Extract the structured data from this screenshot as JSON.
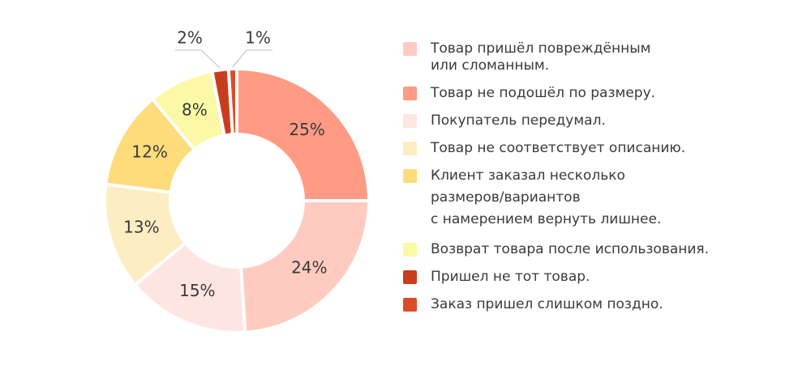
{
  "chart_data": {
    "type": "donut",
    "categories": [
      "Товар пришёл повреждённым\nили сломанным.",
      "Товар не подошёл по размеру.",
      "Покупатель передумал.",
      "Товар не соответствует описанию.",
      "Клиент заказал несколько\nразмеров/вариантов\nс намерением вернуть лишнее.",
      "Возврат товара после использования.",
      "Пришел не тот товар.",
      "Заказ пришел слишком поздно."
    ],
    "values": [
      24,
      25,
      15,
      13,
      12,
      8,
      2,
      1
    ],
    "value_labels": [
      "24%",
      "25%",
      "15%",
      "13%",
      "12%",
      "8%",
      "2%",
      "1%"
    ],
    "colors": [
      "#ffcbc0",
      "#ff9b85",
      "#ffe5e1",
      "#fdedc2",
      "#fedc7c",
      "#fbf9a6",
      "#c93d1e",
      "#dc4c2b"
    ]
  }
}
